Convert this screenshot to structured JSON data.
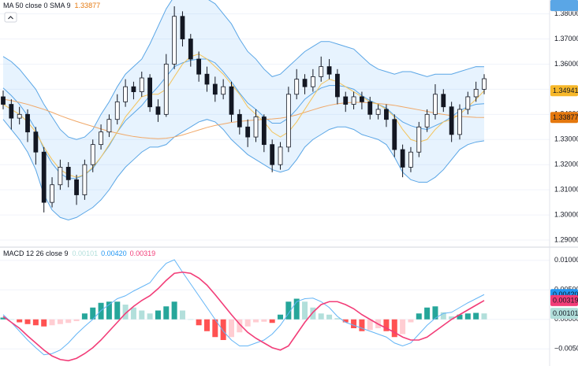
{
  "chart_data": [
    {
      "type": "candlestick",
      "title": "MA 50 close 0 SMA 9",
      "ylim": [
        1.2875,
        1.3855
      ],
      "yticks": [
        {
          "value": 1.29,
          "label": "1.29000"
        },
        {
          "value": 1.3,
          "label": "1.30000"
        },
        {
          "value": 1.31,
          "label": "1.31000"
        },
        {
          "value": 1.32,
          "label": "1.32000"
        },
        {
          "value": 1.33,
          "label": "1.33000"
        },
        {
          "value": 1.34,
          "label": "1.34000"
        },
        {
          "value": 1.35,
          "label": "1.35000"
        },
        {
          "value": 1.36,
          "label": "1.36000"
        },
        {
          "value": 1.37,
          "label": "1.37000"
        },
        {
          "value": 1.38,
          "label": "1.38000"
        }
      ],
      "grid": true,
      "up_color": "#ffffff",
      "down_color": "#131722",
      "wick_color": "#131722",
      "open": [
        1.347,
        1.344,
        1.3385,
        1.34,
        1.333,
        1.325,
        1.305,
        1.312,
        1.319,
        1.314,
        1.308,
        1.32,
        1.328,
        1.333,
        1.338,
        1.345,
        1.351,
        1.349,
        1.3545,
        1.343,
        1.34,
        1.36,
        1.379,
        1.37,
        1.362,
        1.356,
        1.352,
        1.348,
        1.351,
        1.34,
        1.335,
        1.331,
        1.339,
        1.328,
        1.32,
        1.327,
        1.348,
        1.354,
        1.351,
        1.355,
        1.359,
        1.356,
        1.347,
        1.344,
        1.347,
        1.345,
        1.34,
        1.342,
        1.338,
        1.326,
        1.319,
        1.325,
        1.335,
        1.34,
        1.348,
        1.343,
        1.332,
        1.342,
        1.347,
        1.35
      ],
      "high": [
        1.3495,
        1.346,
        1.343,
        1.342,
        1.335,
        1.327,
        1.315,
        1.322,
        1.321,
        1.316,
        1.322,
        1.33,
        1.336,
        1.34,
        1.348,
        1.354,
        1.353,
        1.357,
        1.356,
        1.346,
        1.364,
        1.383,
        1.381,
        1.372,
        1.365,
        1.359,
        1.355,
        1.354,
        1.353,
        1.342,
        1.338,
        1.342,
        1.34,
        1.33,
        1.329,
        1.351,
        1.358,
        1.356,
        1.358,
        1.363,
        1.362,
        1.358,
        1.349,
        1.349,
        1.349,
        1.347,
        1.344,
        1.344,
        1.34,
        1.328,
        1.327,
        1.337,
        1.342,
        1.352,
        1.35,
        1.345,
        1.344,
        1.349,
        1.353,
        1.356
      ],
      "low": [
        1.342,
        1.334,
        1.336,
        1.329,
        1.32,
        1.301,
        1.303,
        1.31,
        1.311,
        1.304,
        1.306,
        1.317,
        1.326,
        1.331,
        1.336,
        1.343,
        1.346,
        1.347,
        1.341,
        1.337,
        1.339,
        1.358,
        1.367,
        1.359,
        1.353,
        1.349,
        1.345,
        1.346,
        1.337,
        1.332,
        1.327,
        1.329,
        1.325,
        1.317,
        1.318,
        1.325,
        1.346,
        1.348,
        1.349,
        1.353,
        1.354,
        1.344,
        1.341,
        1.342,
        1.342,
        1.338,
        1.338,
        1.335,
        1.323,
        1.315,
        1.317,
        1.323,
        1.333,
        1.338,
        1.341,
        1.329,
        1.33,
        1.34,
        1.345,
        1.348
      ],
      "close": [
        1.344,
        1.3385,
        1.34,
        1.333,
        1.325,
        1.305,
        1.312,
        1.319,
        1.314,
        1.308,
        1.32,
        1.328,
        1.333,
        1.338,
        1.345,
        1.351,
        1.349,
        1.3545,
        1.343,
        1.34,
        1.36,
        1.379,
        1.37,
        1.362,
        1.356,
        1.352,
        1.348,
        1.351,
        1.34,
        1.335,
        1.331,
        1.339,
        1.328,
        1.32,
        1.327,
        1.348,
        1.354,
        1.351,
        1.355,
        1.359,
        1.356,
        1.347,
        1.344,
        1.347,
        1.345,
        1.34,
        1.342,
        1.338,
        1.326,
        1.319,
        1.325,
        1.335,
        1.34,
        1.348,
        1.343,
        1.332,
        1.342,
        1.347,
        1.35,
        1.35418
      ],
      "bands": {
        "color": "#5aa6e6",
        "fill": "rgba(33,150,243,0.11)",
        "upper": [
          1.363,
          1.361,
          1.358,
          1.354,
          1.35,
          1.344,
          1.339,
          1.334,
          1.331,
          1.33,
          1.331,
          1.334,
          1.34,
          1.345,
          1.351,
          1.356,
          1.359,
          1.362,
          1.368,
          1.375,
          1.382,
          1.387,
          1.388,
          1.388,
          1.387,
          1.386,
          1.384,
          1.38,
          1.376,
          1.37,
          1.365,
          1.362,
          1.358,
          1.355,
          1.356,
          1.359,
          1.362,
          1.365,
          1.367,
          1.369,
          1.369,
          1.368,
          1.367,
          1.366,
          1.363,
          1.36,
          1.358,
          1.357,
          1.356,
          1.357,
          1.357,
          1.356,
          1.355,
          1.356,
          1.356,
          1.356,
          1.357,
          1.358,
          1.359,
          1.35897
        ],
        "basis": [
          1.3505,
          1.3475,
          1.344,
          1.3395,
          1.334,
          1.326,
          1.3205,
          1.3165,
          1.3145,
          1.3145,
          1.316,
          1.3185,
          1.323,
          1.3275,
          1.333,
          1.3375,
          1.3405,
          1.3435,
          1.3475,
          1.351,
          1.355,
          1.359,
          1.3605,
          1.3615,
          1.362,
          1.362,
          1.3605,
          1.357,
          1.353,
          1.3485,
          1.3445,
          1.342,
          1.339,
          1.3365,
          1.3365,
          1.3385,
          1.342,
          1.346,
          1.3485,
          1.3505,
          1.3515,
          1.3515,
          1.351,
          1.35,
          1.3475,
          1.3455,
          1.344,
          1.3425,
          1.3395,
          1.337,
          1.3355,
          1.3345,
          1.334,
          1.3355,
          1.337,
          1.339,
          1.3415,
          1.343,
          1.344,
          1.34423
        ],
        "lower": [
          1.338,
          1.334,
          1.33,
          1.325,
          1.318,
          1.308,
          1.302,
          1.299,
          1.298,
          1.299,
          1.301,
          1.303,
          1.306,
          1.31,
          1.315,
          1.319,
          1.322,
          1.325,
          1.327,
          1.327,
          1.328,
          1.331,
          1.333,
          1.335,
          1.337,
          1.338,
          1.337,
          1.334,
          1.33,
          1.327,
          1.324,
          1.322,
          1.32,
          1.318,
          1.317,
          1.318,
          1.322,
          1.327,
          1.33,
          1.332,
          1.334,
          1.335,
          1.335,
          1.334,
          1.332,
          1.331,
          1.33,
          1.328,
          1.323,
          1.317,
          1.314,
          1.313,
          1.313,
          1.315,
          1.318,
          1.322,
          1.326,
          1.328,
          1.329,
          1.32949
        ]
      },
      "series": [
        {
          "color": "#f0a868",
          "tag_color": "#e5780e",
          "values": [
            1.346,
            1.3455,
            1.3448,
            1.344,
            1.343,
            1.342,
            1.3408,
            1.3395,
            1.3383,
            1.3372,
            1.3362,
            1.3352,
            1.3342,
            1.3333,
            1.3325,
            1.3318,
            1.3312,
            1.3308,
            1.3305,
            1.3303,
            1.3305,
            1.331,
            1.3318,
            1.3328,
            1.3338,
            1.3348,
            1.3356,
            1.3362,
            1.3368,
            1.3372,
            1.3375,
            1.3378,
            1.338,
            1.3382,
            1.3385,
            1.339,
            1.3398,
            1.3408,
            1.3418,
            1.3428,
            1.3436,
            1.3442,
            1.3446,
            1.3448,
            1.3448,
            1.3446,
            1.3443,
            1.344,
            1.3436,
            1.343,
            1.3424,
            1.3418,
            1.3412,
            1.3405,
            1.34,
            1.3395,
            1.3392,
            1.339,
            1.3388,
            1.33877
          ]
        },
        {
          "color": "#f3c35a",
          "tag_color": "#f7b82a",
          "values": [
            1.344,
            1.342,
            1.34,
            1.337,
            1.333,
            1.327,
            1.322,
            1.318,
            1.316,
            1.315,
            1.316,
            1.319,
            1.323,
            1.328,
            1.333,
            1.339,
            1.343,
            1.347,
            1.348,
            1.348,
            1.35,
            1.355,
            1.36,
            1.363,
            1.364,
            1.362,
            1.359,
            1.356,
            1.352,
            1.348,
            1.343,
            1.34,
            1.337,
            1.333,
            1.331,
            1.333,
            1.337,
            1.342,
            1.347,
            1.352,
            1.354,
            1.353,
            1.351,
            1.349,
            1.347,
            1.345,
            1.344,
            1.342,
            1.339,
            1.334,
            1.33,
            1.329,
            1.33,
            1.334,
            1.337,
            1.338,
            1.34,
            1.343,
            1.346,
            1.34941
          ]
        }
      ]
    },
    {
      "type": "macd",
      "title": "MACD 12 26 close 9",
      "ylim": [
        -0.0079,
        0.0121
      ],
      "yticks": [
        {
          "value": -0.005,
          "label": "−0.00500"
        },
        {
          "value": 0,
          "label": "0.00000"
        },
        {
          "value": 0.005,
          "label": "0.00500"
        },
        {
          "value": 0.01,
          "label": "0.01000"
        }
      ],
      "grid": true,
      "histogram": {
        "colors": {
          "up_rising": "#26a69a",
          "up_falling": "#b2dfdb",
          "down_falling": "#ff5252",
          "down_rising": "#ffcdd2"
        },
        "values": [
          0.0003,
          0,
          -0.0005,
          -0.0008,
          -0.001,
          -0.0012,
          -0.001,
          -0.0008,
          -0.0006,
          -0.0003,
          0.001,
          0.002,
          0.0028,
          0.003,
          0.003,
          0.0025,
          0.002,
          0.0015,
          0.001,
          0.0015,
          0.0022,
          0.003,
          0.0015,
          0,
          -0.001,
          -0.002,
          -0.003,
          -0.0035,
          -0.003,
          -0.0022,
          -0.0012,
          -0.0005,
          -0.0004,
          -0.0006,
          0.0008,
          0.003,
          0.0035,
          0.003,
          0.002,
          0.001,
          0.0008,
          0.0002,
          -0.0005,
          -0.0015,
          -0.002,
          -0.0018,
          -0.0015,
          -0.002,
          -0.003,
          -0.0025,
          -0.0005,
          0.001,
          0.002,
          0.0022,
          0.0012,
          0.0005,
          0.0008,
          0.001,
          0.0011,
          0.00101
        ]
      },
      "series": [
        {
          "color": "#64b5f6",
          "tag_color": "#2196f3",
          "values": [
            0.0008,
            -0.0005,
            -0.002,
            -0.0035,
            -0.0048,
            -0.006,
            -0.0058,
            -0.0052,
            -0.004,
            -0.0025,
            -0.0012,
            0,
            0.0015,
            0.0025,
            0.0035,
            0.004,
            0.0048,
            0.0055,
            0.0062,
            0.008,
            0.0095,
            0.0101,
            0.008,
            0.006,
            0.004,
            0.002,
            0,
            -0.002,
            -0.0035,
            -0.0045,
            -0.0045,
            -0.004,
            -0.0035,
            -0.0025,
            -0.001,
            0.001,
            0.003,
            0.0035,
            0.0036,
            0.003,
            0.002,
            0.0005,
            -0.0005,
            -0.001,
            -0.0015,
            -0.002,
            -0.0025,
            -0.003,
            -0.004,
            -0.0045,
            -0.004,
            -0.0025,
            -0.001,
            0.0002,
            0.001,
            0.0012,
            0.002,
            0.0028,
            0.0035,
            0.0042
          ],
          "value_labels": [
            null,
            null,
            null,
            null,
            null,
            null,
            null,
            null,
            null,
            null,
            null,
            null,
            null,
            null,
            null,
            null,
            null,
            null,
            null,
            null,
            null,
            null,
            null,
            null,
            null,
            null,
            null,
            null,
            null,
            null,
            null,
            null,
            null,
            null,
            null,
            null,
            null,
            null,
            null,
            null,
            null,
            null,
            null,
            null,
            null,
            null,
            null,
            null,
            null,
            null,
            null,
            null,
            null,
            null,
            null,
            null,
            null,
            null,
            null,
            "0.00420"
          ]
        },
        {
          "color": "#f23d78",
          "tag_color": "#f23d78",
          "values": [
            0.0005,
            -0.0005,
            -0.0015,
            -0.0028,
            -0.004,
            -0.0052,
            -0.0062,
            -0.0068,
            -0.007,
            -0.0066,
            -0.0058,
            -0.0048,
            -0.0035,
            -0.002,
            -0.0005,
            0.001,
            0.0022,
            0.0032,
            0.004,
            0.0052,
            0.0066,
            0.0078,
            0.008,
            0.0078,
            0.007,
            0.0058,
            0.0042,
            0.0025,
            0.0008,
            -0.0008,
            -0.0022,
            -0.0032,
            -0.004,
            -0.0048,
            -0.0052,
            -0.0045,
            -0.0025,
            -0.0005,
            0.0012,
            0.0025,
            0.003,
            0.003,
            0.0025,
            0.0018,
            0.0008,
            0,
            -0.0008,
            -0.0015,
            -0.0022,
            -0.003,
            -0.0035,
            -0.0035,
            -0.003,
            -0.002,
            -0.001,
            0,
            0.0008,
            0.0016,
            0.0024,
            0.00319
          ]
        }
      ]
    }
  ]
}
